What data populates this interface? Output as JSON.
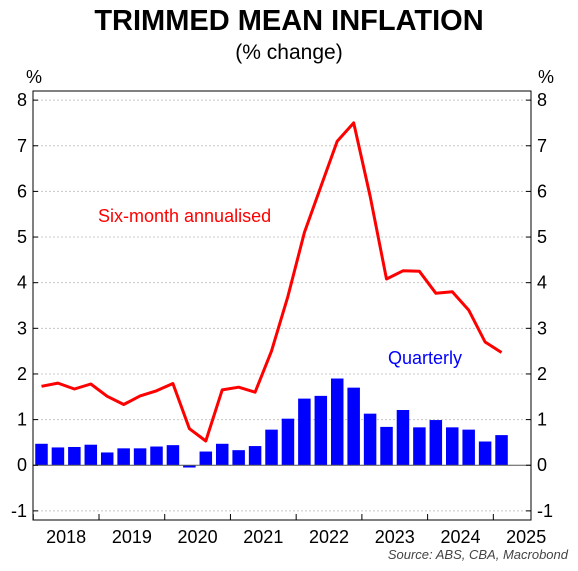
{
  "chart_data": {
    "type": "bar+line",
    "title": "TRIMMED MEAN INFLATION",
    "subtitle": "(% change)",
    "y_unit_left": "%",
    "y_unit_right": "%",
    "ylim": [
      -1.2,
      8.2
    ],
    "yticks": [
      -1,
      0,
      1,
      2,
      3,
      4,
      5,
      6,
      7,
      8
    ],
    "xticks": [
      "2018",
      "2019",
      "2020",
      "2021",
      "2022",
      "2023",
      "2024",
      "2025"
    ],
    "grid": true,
    "source": "Source: ABS, CBA, Macrobond",
    "quarters": [
      "2017Q4",
      "2018Q1",
      "2018Q2",
      "2018Q3",
      "2018Q4",
      "2019Q1",
      "2019Q2",
      "2019Q3",
      "2019Q4",
      "2020Q1",
      "2020Q2",
      "2020Q3",
      "2020Q4",
      "2021Q1",
      "2021Q2",
      "2021Q3",
      "2021Q4",
      "2022Q1",
      "2022Q2",
      "2022Q3",
      "2022Q4",
      "2023Q1",
      "2023Q2",
      "2023Q3",
      "2023Q4",
      "2024Q1",
      "2024Q2",
      "2024Q3",
      "2024Q4"
    ],
    "series": [
      {
        "name": "Quarterly",
        "type": "bar",
        "color": "#0000ff",
        "values": [
          0.47,
          0.39,
          0.4,
          0.45,
          0.28,
          0.37,
          0.37,
          0.41,
          0.44,
          -0.05,
          0.3,
          0.47,
          0.33,
          0.42,
          0.78,
          1.02,
          1.46,
          1.52,
          1.9,
          1.7,
          1.13,
          0.84,
          1.21,
          0.83,
          0.99,
          0.83,
          0.78,
          0.52,
          0.66
        ]
      },
      {
        "name": "Six-month annualised",
        "type": "line",
        "color": "#ff0000",
        "values": [
          1.73,
          1.8,
          1.67,
          1.78,
          1.51,
          1.33,
          1.52,
          1.63,
          1.79,
          0.8,
          0.53,
          1.65,
          1.71,
          1.6,
          2.5,
          3.7,
          5.1,
          6.1,
          7.1,
          7.5,
          5.9,
          4.08,
          4.26,
          4.25,
          3.77,
          3.8,
          3.4,
          2.7,
          2.47
        ]
      }
    ]
  }
}
